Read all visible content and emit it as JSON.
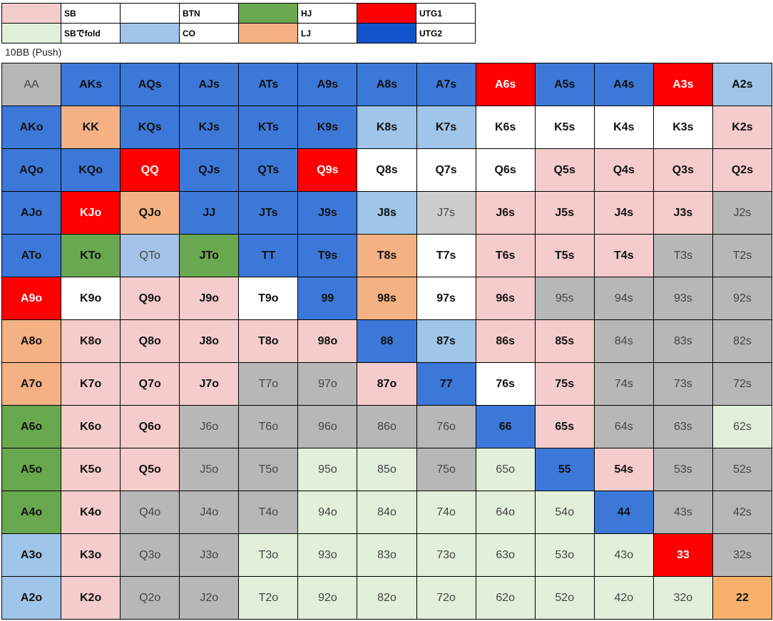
{
  "legend": {
    "items": [
      {
        "label": "SB",
        "color": "#f4cccc"
      },
      {
        "label": "BTN",
        "color": "#ffffff"
      },
      {
        "label": "HJ",
        "color": "#6aa84f"
      },
      {
        "label": "UTG1",
        "color": "#ff0000"
      },
      {
        "label": "SBでfold",
        "color": "#e2efda"
      },
      {
        "label": "CO",
        "color": "#9fc5e8"
      },
      {
        "label": "LJ",
        "color": "#f4b183"
      },
      {
        "label": "UTG2",
        "color": "#1155cc"
      }
    ]
  },
  "caption": "10BB (Push)",
  "grid": {
    "rows": [
      [
        {
          "label": "AA",
          "color": "#b7b7b7"
        },
        {
          "label": "AKs",
          "color": "#3c78d8"
        },
        {
          "label": "AQs",
          "color": "#3c78d8"
        },
        {
          "label": "AJs",
          "color": "#3c78d8"
        },
        {
          "label": "ATs",
          "color": "#3c78d8"
        },
        {
          "label": "A9s",
          "color": "#3c78d8"
        },
        {
          "label": "A8s",
          "color": "#3c78d8"
        },
        {
          "label": "A7s",
          "color": "#3c78d8"
        },
        {
          "label": "A6s",
          "color": "#ff0000"
        },
        {
          "label": "A5s",
          "color": "#3c78d8"
        },
        {
          "label": "A4s",
          "color": "#3c78d8"
        },
        {
          "label": "A3s",
          "color": "#ff0000"
        },
        {
          "label": "A2s",
          "color": "#9fc5e8"
        }
      ],
      [
        {
          "label": "AKo",
          "color": "#3c78d8"
        },
        {
          "label": "KK",
          "color": "#f4b183"
        },
        {
          "label": "KQs",
          "color": "#3c78d8"
        },
        {
          "label": "KJs",
          "color": "#3c78d8"
        },
        {
          "label": "KTs",
          "color": "#3c78d8"
        },
        {
          "label": "K9s",
          "color": "#3c78d8"
        },
        {
          "label": "K8s",
          "color": "#9fc5e8"
        },
        {
          "label": "K7s",
          "color": "#9fc5e8"
        },
        {
          "label": "K6s",
          "color": "#ffffff"
        },
        {
          "label": "K5s",
          "color": "#ffffff"
        },
        {
          "label": "K4s",
          "color": "#ffffff"
        },
        {
          "label": "K3s",
          "color": "#ffffff"
        },
        {
          "label": "K2s",
          "color": "#f4cccc"
        }
      ],
      [
        {
          "label": "AQo",
          "color": "#3c78d8"
        },
        {
          "label": "KQo",
          "color": "#3c78d8"
        },
        {
          "label": "QQ",
          "color": "#ff0000"
        },
        {
          "label": "QJs",
          "color": "#3c78d8"
        },
        {
          "label": "QTs",
          "color": "#3c78d8"
        },
        {
          "label": "Q9s",
          "color": "#ff0000"
        },
        {
          "label": "Q8s",
          "color": "#ffffff"
        },
        {
          "label": "Q7s",
          "color": "#ffffff"
        },
        {
          "label": "Q6s",
          "color": "#ffffff"
        },
        {
          "label": "Q5s",
          "color": "#f4cccc"
        },
        {
          "label": "Q4s",
          "color": "#f4cccc"
        },
        {
          "label": "Q3s",
          "color": "#f4cccc"
        },
        {
          "label": "Q2s",
          "color": "#f4cccc"
        }
      ],
      [
        {
          "label": "AJo",
          "color": "#3c78d8"
        },
        {
          "label": "KJo",
          "color": "#ff0000"
        },
        {
          "label": "QJo",
          "color": "#f4b183"
        },
        {
          "label": "JJ",
          "color": "#3c78d8"
        },
        {
          "label": "JTs",
          "color": "#3c78d8"
        },
        {
          "label": "J9s",
          "color": "#3c78d8"
        },
        {
          "label": "J8s",
          "color": "#9fc5e8"
        },
        {
          "label": "J7s",
          "color": "#cccccc"
        },
        {
          "label": "J6s",
          "color": "#f4cccc"
        },
        {
          "label": "J5s",
          "color": "#f4cccc"
        },
        {
          "label": "J4s",
          "color": "#f4cccc"
        },
        {
          "label": "J3s",
          "color": "#f4cccc"
        },
        {
          "label": "J2s",
          "color": "#b7b7b7"
        }
      ],
      [
        {
          "label": "ATo",
          "color": "#3c78d8"
        },
        {
          "label": "KTo",
          "color": "#6aa84f"
        },
        {
          "label": "QTo",
          "color": "#a4c2e8"
        },
        {
          "label": "JTo",
          "color": "#6aa84f"
        },
        {
          "label": "TT",
          "color": "#3c78d8"
        },
        {
          "label": "T9s",
          "color": "#3c78d8"
        },
        {
          "label": "T8s",
          "color": "#f4b183"
        },
        {
          "label": "T7s",
          "color": "#ffffff"
        },
        {
          "label": "T6s",
          "color": "#f4cccc"
        },
        {
          "label": "T5s",
          "color": "#f4cccc"
        },
        {
          "label": "T4s",
          "color": "#f4cccc"
        },
        {
          "label": "T3s",
          "color": "#b7b7b7"
        },
        {
          "label": "T2s",
          "color": "#b7b7b7"
        }
      ],
      [
        {
          "label": "A9o",
          "color": "#ff0000"
        },
        {
          "label": "K9o",
          "color": "#ffffff"
        },
        {
          "label": "Q9o",
          "color": "#f4cccc"
        },
        {
          "label": "J9o",
          "color": "#f4cccc"
        },
        {
          "label": "T9o",
          "color": "#ffffff"
        },
        {
          "label": "99",
          "color": "#3c78d8"
        },
        {
          "label": "98s",
          "color": "#f4b183"
        },
        {
          "label": "97s",
          "color": "#ffffff"
        },
        {
          "label": "96s",
          "color": "#f4cccc"
        },
        {
          "label": "95s",
          "color": "#b7b7b7"
        },
        {
          "label": "94s",
          "color": "#b7b7b7"
        },
        {
          "label": "93s",
          "color": "#b7b7b7"
        },
        {
          "label": "92s",
          "color": "#b7b7b7"
        }
      ],
      [
        {
          "label": "A8o",
          "color": "#f4b183"
        },
        {
          "label": "K8o",
          "color": "#f4cccc"
        },
        {
          "label": "Q8o",
          "color": "#f4cccc"
        },
        {
          "label": "J8o",
          "color": "#f4cccc"
        },
        {
          "label": "T8o",
          "color": "#f4cccc"
        },
        {
          "label": "98o",
          "color": "#f4cccc"
        },
        {
          "label": "88",
          "color": "#3c78d8"
        },
        {
          "label": "87s",
          "color": "#9fc5e8"
        },
        {
          "label": "86s",
          "color": "#f4cccc"
        },
        {
          "label": "85s",
          "color": "#f4cccc"
        },
        {
          "label": "84s",
          "color": "#b7b7b7"
        },
        {
          "label": "83s",
          "color": "#b7b7b7"
        },
        {
          "label": "82s",
          "color": "#b7b7b7"
        }
      ],
      [
        {
          "label": "A7o",
          "color": "#f4b183"
        },
        {
          "label": "K7o",
          "color": "#f4cccc"
        },
        {
          "label": "Q7o",
          "color": "#f4cccc"
        },
        {
          "label": "J7o",
          "color": "#f4cccc"
        },
        {
          "label": "T7o",
          "color": "#b7b7b7"
        },
        {
          "label": "97o",
          "color": "#b7b7b7"
        },
        {
          "label": "87o",
          "color": "#f4cccc"
        },
        {
          "label": "77",
          "color": "#3c78d8"
        },
        {
          "label": "76s",
          "color": "#ffffff"
        },
        {
          "label": "75s",
          "color": "#f4cccc"
        },
        {
          "label": "74s",
          "color": "#b7b7b7"
        },
        {
          "label": "73s",
          "color": "#b7b7b7"
        },
        {
          "label": "72s",
          "color": "#b7b7b7"
        }
      ],
      [
        {
          "label": "A6o",
          "color": "#6aa84f"
        },
        {
          "label": "K6o",
          "color": "#f4cccc"
        },
        {
          "label": "Q6o",
          "color": "#f4cccc"
        },
        {
          "label": "J6o",
          "color": "#b7b7b7"
        },
        {
          "label": "T6o",
          "color": "#b7b7b7"
        },
        {
          "label": "96o",
          "color": "#b7b7b7"
        },
        {
          "label": "86o",
          "color": "#b7b7b7"
        },
        {
          "label": "76o",
          "color": "#b7b7b7"
        },
        {
          "label": "66",
          "color": "#3c78d8"
        },
        {
          "label": "65s",
          "color": "#f4cccc"
        },
        {
          "label": "64s",
          "color": "#b7b7b7"
        },
        {
          "label": "63s",
          "color": "#b7b7b7"
        },
        {
          "label": "62s",
          "color": "#e2efda"
        }
      ],
      [
        {
          "label": "A5o",
          "color": "#6aa84f"
        },
        {
          "label": "K5o",
          "color": "#f4cccc"
        },
        {
          "label": "Q5o",
          "color": "#f4cccc"
        },
        {
          "label": "J5o",
          "color": "#b7b7b7"
        },
        {
          "label": "T5o",
          "color": "#b7b7b7"
        },
        {
          "label": "95o",
          "color": "#e2efda"
        },
        {
          "label": "85o",
          "color": "#e2efda"
        },
        {
          "label": "75o",
          "color": "#b7b7b7"
        },
        {
          "label": "65o",
          "color": "#e2efda"
        },
        {
          "label": "55",
          "color": "#3c78d8"
        },
        {
          "label": "54s",
          "color": "#f4cccc"
        },
        {
          "label": "53s",
          "color": "#b7b7b7"
        },
        {
          "label": "52s",
          "color": "#b7b7b7"
        }
      ],
      [
        {
          "label": "A4o",
          "color": "#6aa84f"
        },
        {
          "label": "K4o",
          "color": "#f4cccc"
        },
        {
          "label": "Q4o",
          "color": "#b7b7b7"
        },
        {
          "label": "J4o",
          "color": "#b7b7b7"
        },
        {
          "label": "T4o",
          "color": "#b7b7b7"
        },
        {
          "label": "94o",
          "color": "#e2efda"
        },
        {
          "label": "84o",
          "color": "#e2efda"
        },
        {
          "label": "74o",
          "color": "#e2efda"
        },
        {
          "label": "64o",
          "color": "#e2efda"
        },
        {
          "label": "54o",
          "color": "#e2efda"
        },
        {
          "label": "44",
          "color": "#3c78d8"
        },
        {
          "label": "43s",
          "color": "#b7b7b7"
        },
        {
          "label": "42s",
          "color": "#b7b7b7"
        }
      ],
      [
        {
          "label": "A3o",
          "color": "#9fc5e8"
        },
        {
          "label": "K3o",
          "color": "#f4cccc"
        },
        {
          "label": "Q3o",
          "color": "#b7b7b7"
        },
        {
          "label": "J3o",
          "color": "#b7b7b7"
        },
        {
          "label": "T3o",
          "color": "#e2efda"
        },
        {
          "label": "93o",
          "color": "#e2efda"
        },
        {
          "label": "83o",
          "color": "#e2efda"
        },
        {
          "label": "73o",
          "color": "#e2efda"
        },
        {
          "label": "63o",
          "color": "#e2efda"
        },
        {
          "label": "53o",
          "color": "#e2efda"
        },
        {
          "label": "43o",
          "color": "#e2efda"
        },
        {
          "label": "33",
          "color": "#ff0000"
        },
        {
          "label": "32s",
          "color": "#b7b7b7"
        }
      ],
      [
        {
          "label": "A2o",
          "color": "#9fc5e8"
        },
        {
          "label": "K2o",
          "color": "#f4cccc"
        },
        {
          "label": "Q2o",
          "color": "#b7b7b7"
        },
        {
          "label": "J2o",
          "color": "#b7b7b7"
        },
        {
          "label": "T2o",
          "color": "#e2efda"
        },
        {
          "label": "92o",
          "color": "#e2efda"
        },
        {
          "label": "82o",
          "color": "#e2efda"
        },
        {
          "label": "72o",
          "color": "#e2efda"
        },
        {
          "label": "62o",
          "color": "#e2efda"
        },
        {
          "label": "52o",
          "color": "#e2efda"
        },
        {
          "label": "42o",
          "color": "#e2efda"
        },
        {
          "label": "32o",
          "color": "#e2efda"
        },
        {
          "label": "22",
          "color": "#f6b26b"
        }
      ]
    ]
  }
}
